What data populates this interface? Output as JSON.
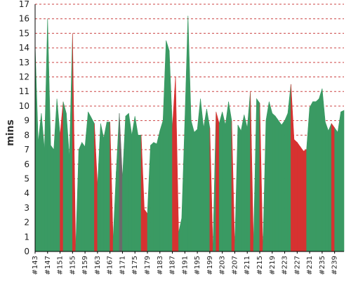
{
  "chart_data": {
    "type": "area",
    "title": "",
    "xlabel": "",
    "ylabel": "mins",
    "ylim": [
      0,
      17
    ],
    "yticks": [
      0,
      1,
      2,
      3,
      4,
      5,
      6,
      7,
      8,
      9,
      10,
      11,
      12,
      13,
      14,
      15,
      16,
      17
    ],
    "grid": "horizontal-dashed",
    "colors": {
      "ok": "#3a9a63",
      "bad": "#d63231",
      "neutral": "#6a6a6a",
      "grid": "#cc4444",
      "axis": "#000000"
    },
    "categories": [
      "#143",
      "#144",
      "#145",
      "#146",
      "#147",
      "#148",
      "#149",
      "#150",
      "#151",
      "#152",
      "#153",
      "#154",
      "#155",
      "#156",
      "#157",
      "#158",
      "#159",
      "#160",
      "#161",
      "#162",
      "#163",
      "#164",
      "#165",
      "#166",
      "#167",
      "#168",
      "#169",
      "#170",
      "#171",
      "#172",
      "#173",
      "#174",
      "#175",
      "#176",
      "#177",
      "#178",
      "#179",
      "#180",
      "#181",
      "#182",
      "#183",
      "#184",
      "#185",
      "#186",
      "#187",
      "#188",
      "#189",
      "#190",
      "#191",
      "#192",
      "#193",
      "#194",
      "#195",
      "#196",
      "#197",
      "#198",
      "#199",
      "#200",
      "#201",
      "#202",
      "#203",
      "#204",
      "#205",
      "#206",
      "#207",
      "#208",
      "#209",
      "#210",
      "#211",
      "#212",
      "#213",
      "#214",
      "#215",
      "#216",
      "#217",
      "#218",
      "#219",
      "#220",
      "#221",
      "#222",
      "#223",
      "#224",
      "#225",
      "#226",
      "#227",
      "#228",
      "#229",
      "#230",
      "#231",
      "#232",
      "#233",
      "#234",
      "#235",
      "#236",
      "#237",
      "#238",
      "#239",
      "#240",
      "#241",
      "#242"
    ],
    "tick_labels": [
      "#143",
      "#147",
      "#151",
      "#155",
      "#159",
      "#163",
      "#167",
      "#171",
      "#175",
      "#179",
      "#183",
      "#187",
      "#191",
      "#195",
      "#199",
      "#203",
      "#207",
      "#211",
      "#215",
      "#219",
      "#223",
      "#227",
      "#231",
      "#235",
      "#239"
    ],
    "values": [
      14.2,
      7.5,
      9.5,
      7.0,
      16.0,
      7.3,
      7.0,
      10.5,
      8.0,
      10.3,
      9.5,
      6.5,
      15.0,
      0.1,
      7.0,
      7.5,
      7.2,
      9.6,
      9.2,
      8.8,
      4.5,
      8.8,
      7.8,
      8.9,
      8.9,
      0.8,
      5.5,
      9.5,
      5.0,
      9.3,
      9.5,
      8.0,
      9.3,
      8.0,
      8.0,
      2.9,
      2.6,
      7.3,
      7.5,
      7.4,
      8.3,
      9.0,
      14.5,
      13.8,
      8.5,
      12.0,
      1.3,
      2.3,
      9.0,
      16.2,
      9.0,
      8.2,
      8.4,
      10.5,
      8.5,
      9.8,
      8.5,
      0.2,
      9.6,
      8.8,
      9.6,
      8.7,
      10.3,
      9.0,
      0.3,
      8.7,
      8.3,
      9.4,
      8.5,
      11.0,
      0.5,
      10.5,
      10.2,
      0.1,
      9.0,
      10.3,
      9.5,
      9.3,
      9.0,
      8.7,
      9.0,
      9.5,
      11.5,
      7.7,
      7.5,
      7.2,
      6.9,
      7.0,
      9.9,
      10.3,
      10.3,
      10.5,
      11.2,
      8.9,
      8.3,
      8.8,
      8.5,
      8.2,
      9.6,
      9.7
    ],
    "status": [
      "ok",
      "ok",
      "ok",
      "ok",
      "ok",
      "ok",
      "ok",
      "ok",
      "ok",
      "bad",
      "ok",
      "ok",
      "ok",
      "bad",
      "ok",
      "ok",
      "ok",
      "ok",
      "ok",
      "ok",
      "bad",
      "ok",
      "ok",
      "ok",
      "ok",
      "bad",
      "ok",
      "ok",
      "neutral",
      "ok",
      "ok",
      "ok",
      "ok",
      "ok",
      "ok",
      "bad",
      "bad",
      "ok",
      "ok",
      "ok",
      "ok",
      "ok",
      "ok",
      "ok",
      "ok",
      "bad",
      "bad",
      "ok",
      "ok",
      "ok",
      "ok",
      "ok",
      "ok",
      "ok",
      "ok",
      "ok",
      "ok",
      "bad",
      "ok",
      "bad",
      "ok",
      "ok",
      "ok",
      "ok",
      "bad",
      "ok",
      "ok",
      "ok",
      "ok",
      "ok",
      "bad",
      "ok",
      "ok",
      "bad",
      "ok",
      "ok",
      "ok",
      "ok",
      "ok",
      "ok",
      "ok",
      "ok",
      "ok",
      "bad",
      "bad",
      "bad",
      "bad",
      "bad",
      "ok",
      "ok",
      "ok",
      "ok",
      "ok",
      "ok",
      "ok",
      "ok",
      "bad",
      "ok",
      "ok",
      "ok"
    ]
  }
}
